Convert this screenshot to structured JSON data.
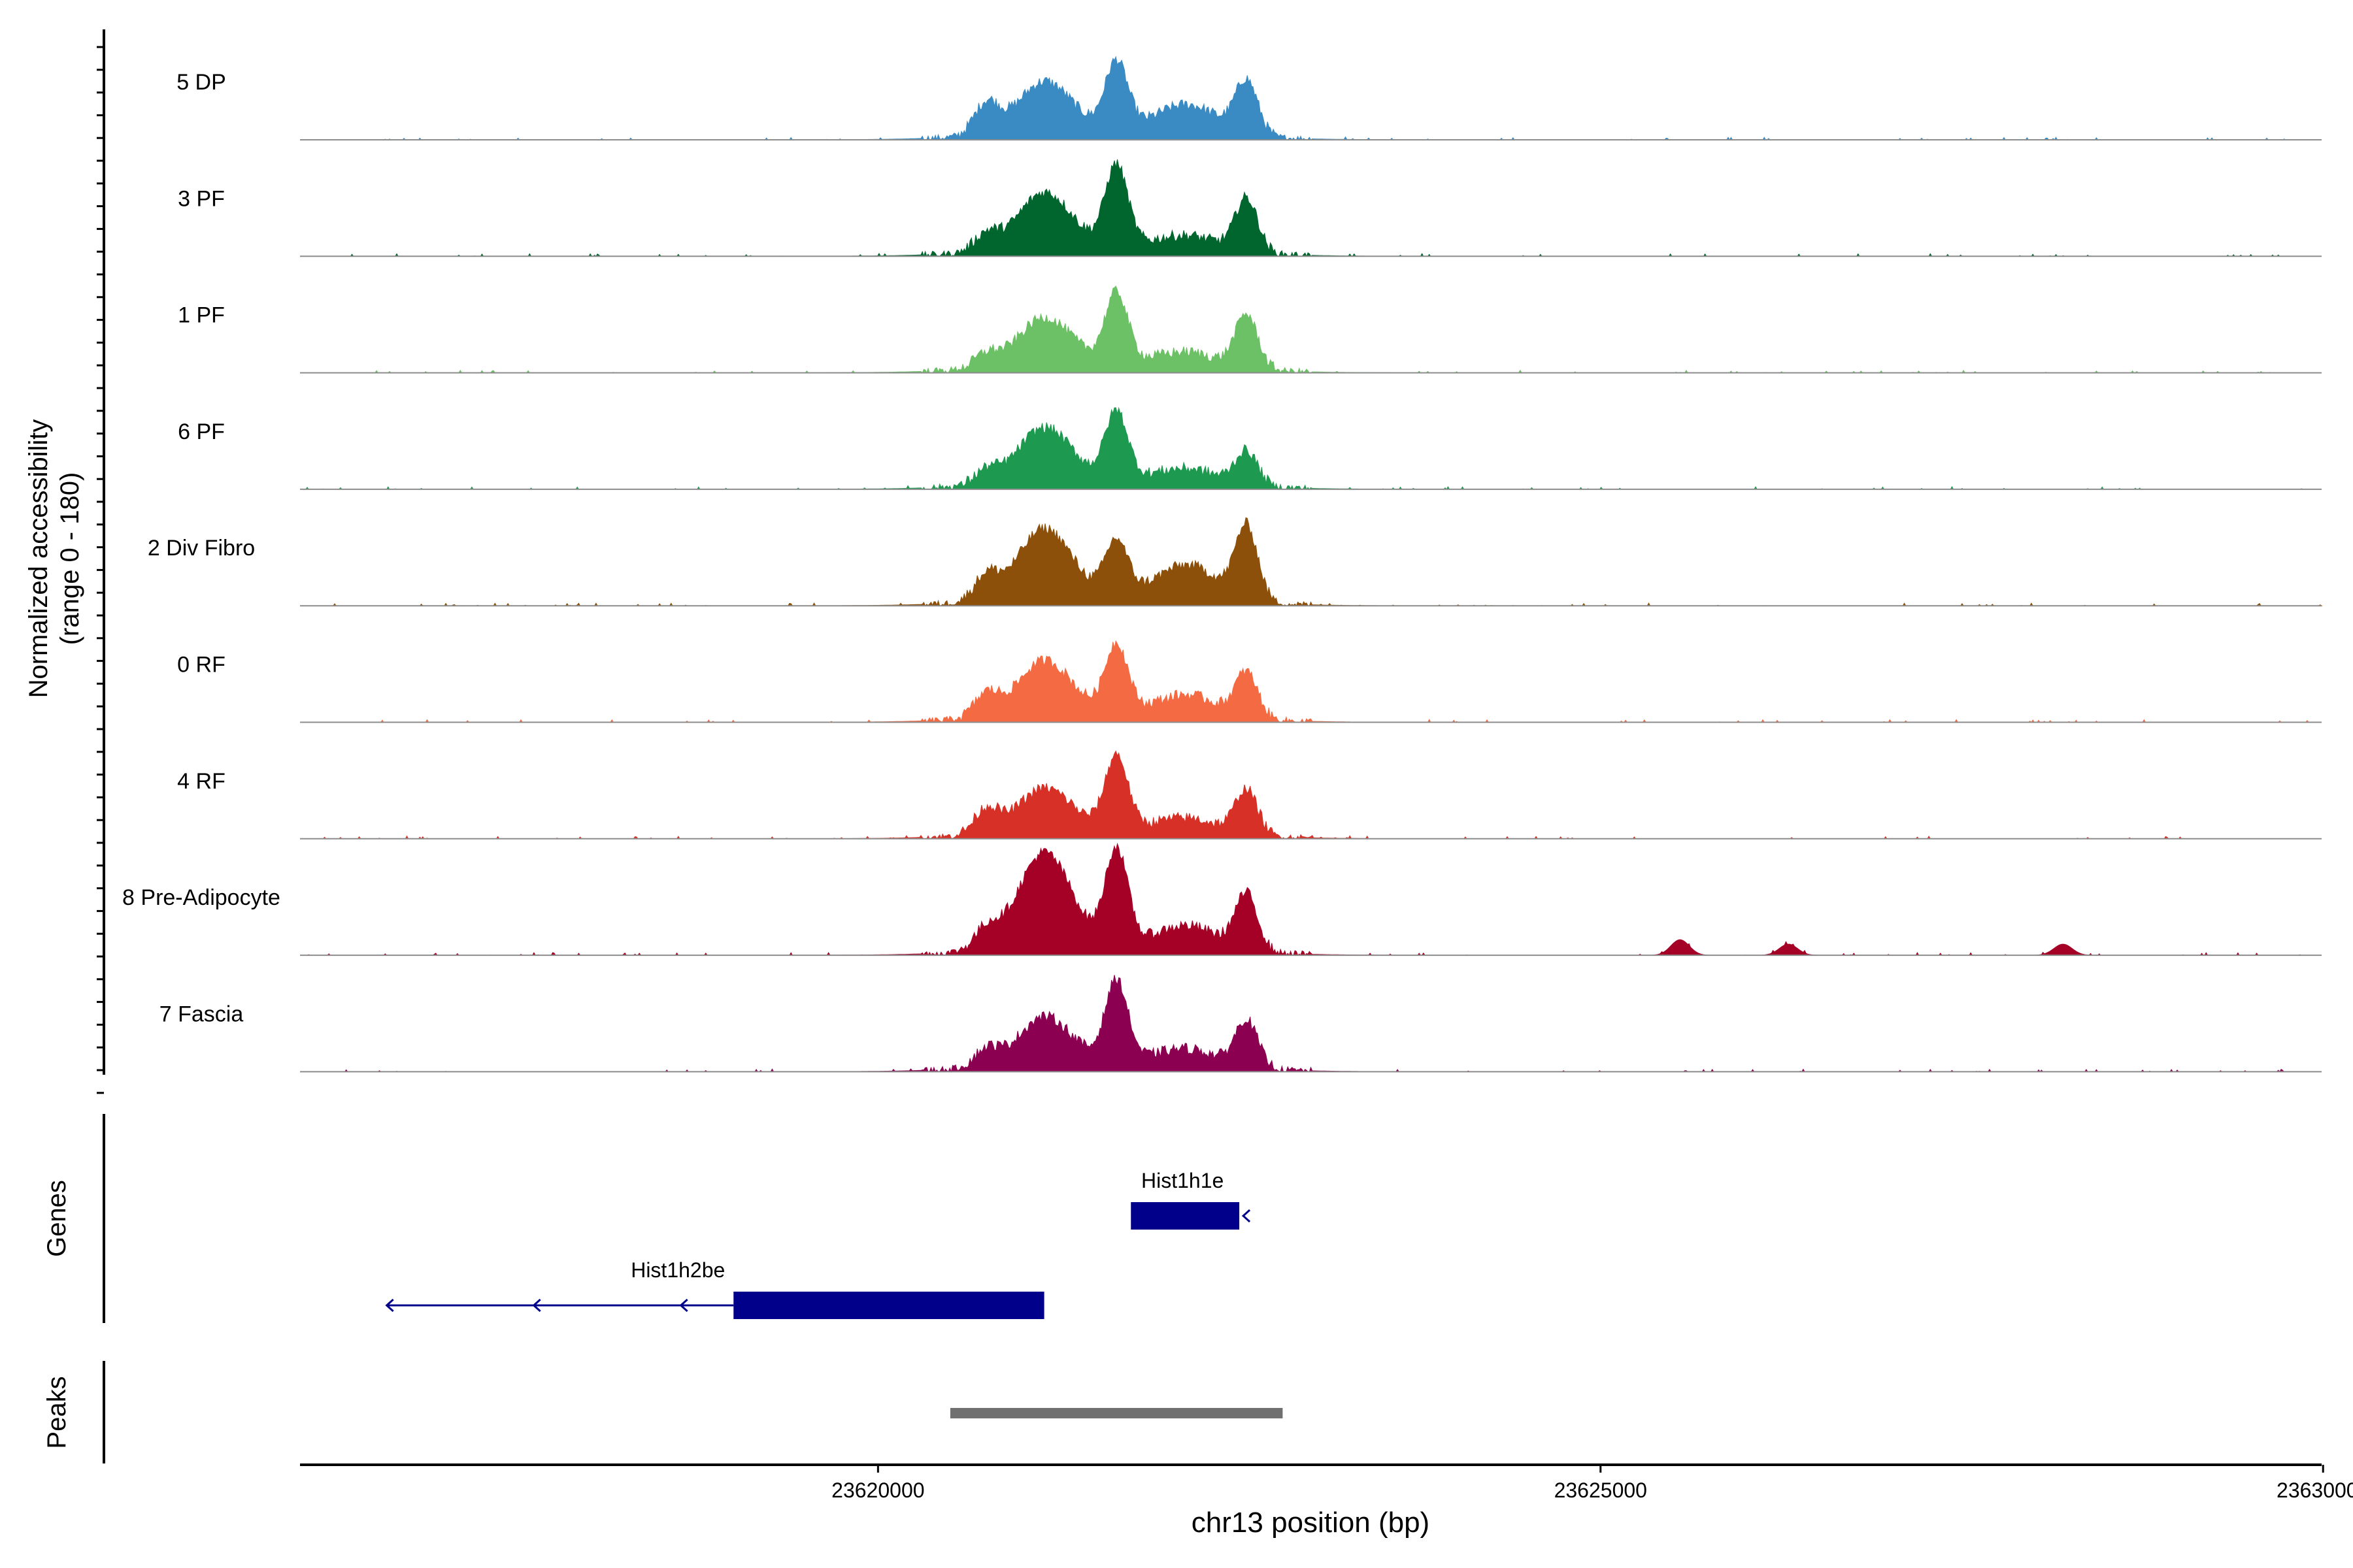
{
  "chart_data": {
    "type": "area",
    "chromosome": "chr13",
    "xlim": [
      23616000,
      23630000
    ],
    "x_ticks": [
      23620000,
      23625000,
      23630000
    ],
    "x_tick_labels": [
      "23620000",
      "23625000",
      "23630000"
    ],
    "xlabel": "chr13 position (bp)",
    "ylabel_line1": "Normalized accessibility",
    "ylabel_line2": "(range 0 - 180)",
    "y_range": [
      0,
      180
    ],
    "peak_positions": [
      23620750,
      23621150,
      23621650,
      23622150,
      23622550
    ],
    "tracks": [
      {
        "name": "5 DP",
        "color": "#3a8bc4",
        "heights": [
          0.28,
          0.45,
          0.6,
          0.25,
          0.48
        ],
        "extra": []
      },
      {
        "name": "3 PF",
        "color": "#00662e",
        "heights": [
          0.15,
          0.5,
          0.72,
          0.12,
          0.48
        ],
        "extra": []
      },
      {
        "name": "1 PF",
        "color": "#6cc065",
        "heights": [
          0.12,
          0.42,
          0.62,
          0.12,
          0.48
        ],
        "extra": []
      },
      {
        "name": "6 PF",
        "color": "#1e9950",
        "heights": [
          0.12,
          0.48,
          0.6,
          0.12,
          0.3
        ],
        "extra": []
      },
      {
        "name": "2 Div Fibro",
        "color": "#8c500a",
        "heights": [
          0.22,
          0.62,
          0.48,
          0.3,
          0.66
        ],
        "extra": []
      },
      {
        "name": "0 RF",
        "color": "#f46b43",
        "heights": [
          0.2,
          0.48,
          0.6,
          0.18,
          0.4
        ],
        "extra": []
      },
      {
        "name": "4 RF",
        "color": "#d73027",
        "heights": [
          0.22,
          0.38,
          0.65,
          0.12,
          0.4
        ],
        "extra": []
      },
      {
        "name": "8 Pre-Adipocyte",
        "color": "#a50026",
        "heights": [
          0.18,
          0.85,
          0.85,
          0.2,
          0.5
        ],
        "extra": [
          [
            23625550,
            0.14
          ],
          [
            23626300,
            0.1
          ],
          [
            23628200,
            0.1
          ]
        ]
      },
      {
        "name": "7 Fascia",
        "color": "#8c0051",
        "heights": [
          0.15,
          0.42,
          0.72,
          0.14,
          0.42
        ],
        "extra": []
      }
    ],
    "genes_label": "Genes",
    "genes": [
      {
        "name": "Hist1h1e",
        "start": 23621750,
        "end": 23622500,
        "color": "#00008b",
        "strand": "-"
      },
      {
        "name": "Hist1h2be",
        "start": 23619000,
        "end": 23621150,
        "color": "#00008b",
        "strand": "-",
        "intron_start": 23616600
      }
    ],
    "peaks_label": "Peaks",
    "peaks": [
      {
        "start": 23620500,
        "end": 23622800,
        "color": "#707070"
      }
    ]
  }
}
